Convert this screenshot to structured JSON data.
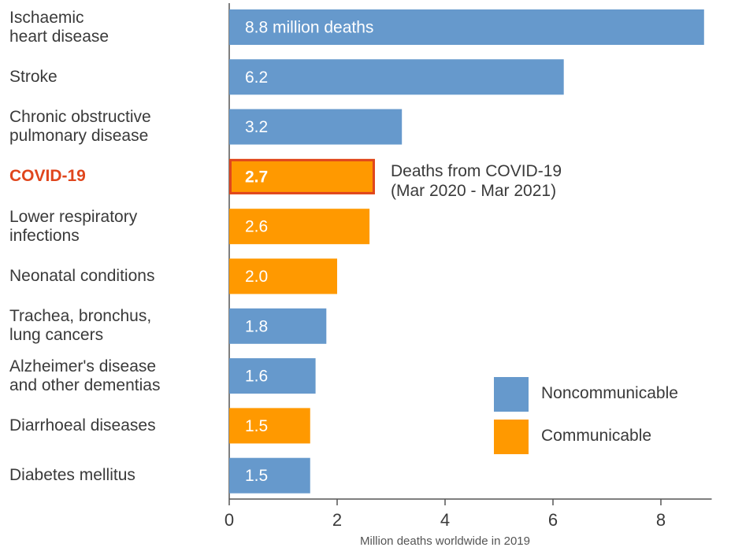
{
  "chart_data": {
    "type": "bar",
    "orientation": "horizontal",
    "xlabel": "Million deaths worldwide in 2019",
    "xlim": [
      0,
      9
    ],
    "xticks": [
      0,
      2,
      4,
      6,
      8
    ],
    "bars": [
      {
        "category": "Ischaemic\nheart disease",
        "value": 8.8,
        "label": "8.8 million deaths",
        "series": "Noncommunicable"
      },
      {
        "category": "Stroke",
        "value": 6.2,
        "label": "6.2",
        "series": "Noncommunicable"
      },
      {
        "category": "Chronic obstructive\npulmonary disease",
        "value": 3.2,
        "label": "3.2",
        "series": "Noncommunicable"
      },
      {
        "category": "COVID-19",
        "value": 2.7,
        "label": "2.7",
        "series": "Communicable",
        "highlight": true
      },
      {
        "category": "Lower respiratory\ninfections",
        "value": 2.6,
        "label": "2.6",
        "series": "Communicable"
      },
      {
        "category": "Neonatal conditions",
        "value": 2.0,
        "label": "2.0",
        "series": "Communicable"
      },
      {
        "category": "Trachea, bronchus,\nlung cancers",
        "value": 1.8,
        "label": "1.8",
        "series": "Noncommunicable"
      },
      {
        "category": "Alzheimer's disease\nand other dementias",
        "value": 1.6,
        "label": "1.6",
        "series": "Noncommunicable"
      },
      {
        "category": "Diarrhoeal diseases",
        "value": 1.5,
        "label": "1.5",
        "series": "Communicable"
      },
      {
        "category": "Diabetes mellitus",
        "value": 1.5,
        "label": "1.5",
        "series": "Noncommunicable"
      }
    ],
    "annotation": "Deaths from COVID-19\n(Mar 2020 - Mar 2021)",
    "legend": {
      "placement": "bottom-right",
      "items": [
        {
          "name": "Noncommunicable",
          "color": "#6699cc"
        },
        {
          "name": "Communicable",
          "color": "#ff9900"
        }
      ]
    },
    "highlight_color": "#e0461d",
    "grid": false
  }
}
